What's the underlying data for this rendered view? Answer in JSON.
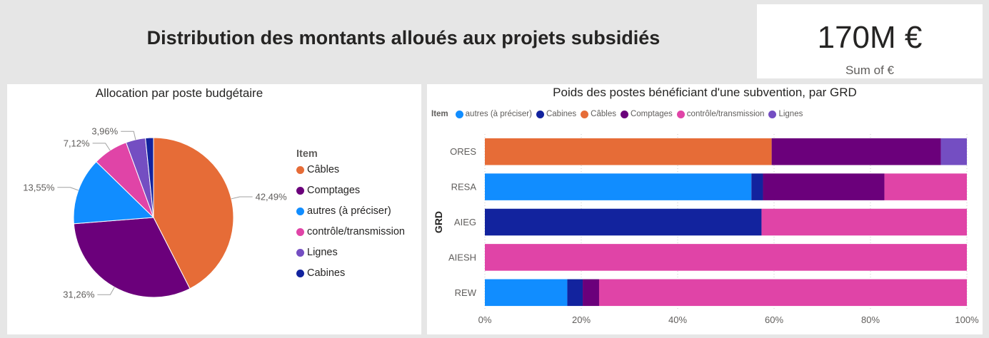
{
  "header": {
    "title": "Distribution des montants alloués aux projets subsidiés"
  },
  "card": {
    "value": "170M €",
    "label": "Sum of €"
  },
  "colors": {
    "Câbles": "#e66c37",
    "Comptages": "#6b007b",
    "autres (à préciser)": "#118dff",
    "contrôle/transmission": "#e044a7",
    "Lignes": "#744ec2",
    "Cabines": "#12239e"
  },
  "chart_data": [
    {
      "type": "pie",
      "title": "Allocation par poste budgétaire",
      "legend_title": "Item",
      "legend_position": "right",
      "slices": [
        {
          "label": "Câbles",
          "value": 42.49,
          "text": "42,49%"
        },
        {
          "label": "Comptages",
          "value": 31.26,
          "text": "31,26%"
        },
        {
          "label": "autres (à préciser)",
          "value": 13.55,
          "text": "13,55%"
        },
        {
          "label": "contrôle/transmission",
          "value": 7.12,
          "text": "7,12%"
        },
        {
          "label": "Lignes",
          "value": 3.96,
          "text": "3,96%"
        },
        {
          "label": "Cabines",
          "value": 1.62,
          "text": ""
        }
      ]
    },
    {
      "type": "bar",
      "orientation": "horizontal",
      "stacked": "100%",
      "title": "Poids des postes bénéficiant d'une subvention, par GRD",
      "legend_title": "Item",
      "legend_position": "top-left",
      "ylabel": "GRD",
      "categories": [
        "ORES",
        "RESA",
        "AIEG",
        "AIESH",
        "REW"
      ],
      "xticks": [
        "0%",
        "20%",
        "40%",
        "60%",
        "80%",
        "100%"
      ],
      "xlim": [
        0,
        100
      ],
      "series": [
        {
          "name": "autres (à préciser)",
          "values": [
            0,
            55.3,
            0,
            0,
            17.1
          ]
        },
        {
          "name": "Cabines",
          "values": [
            0,
            2.4,
            57.4,
            0,
            3.2
          ]
        },
        {
          "name": "Câbles",
          "values": [
            59.5,
            0,
            0,
            0,
            0
          ]
        },
        {
          "name": "Comptages",
          "values": [
            35.1,
            25.2,
            0,
            0,
            3.4
          ]
        },
        {
          "name": "contrôle/transmission",
          "values": [
            0,
            17.1,
            42.6,
            100,
            76.3
          ]
        },
        {
          "name": "Lignes",
          "values": [
            5.4,
            0,
            0,
            0,
            0
          ]
        }
      ]
    }
  ]
}
